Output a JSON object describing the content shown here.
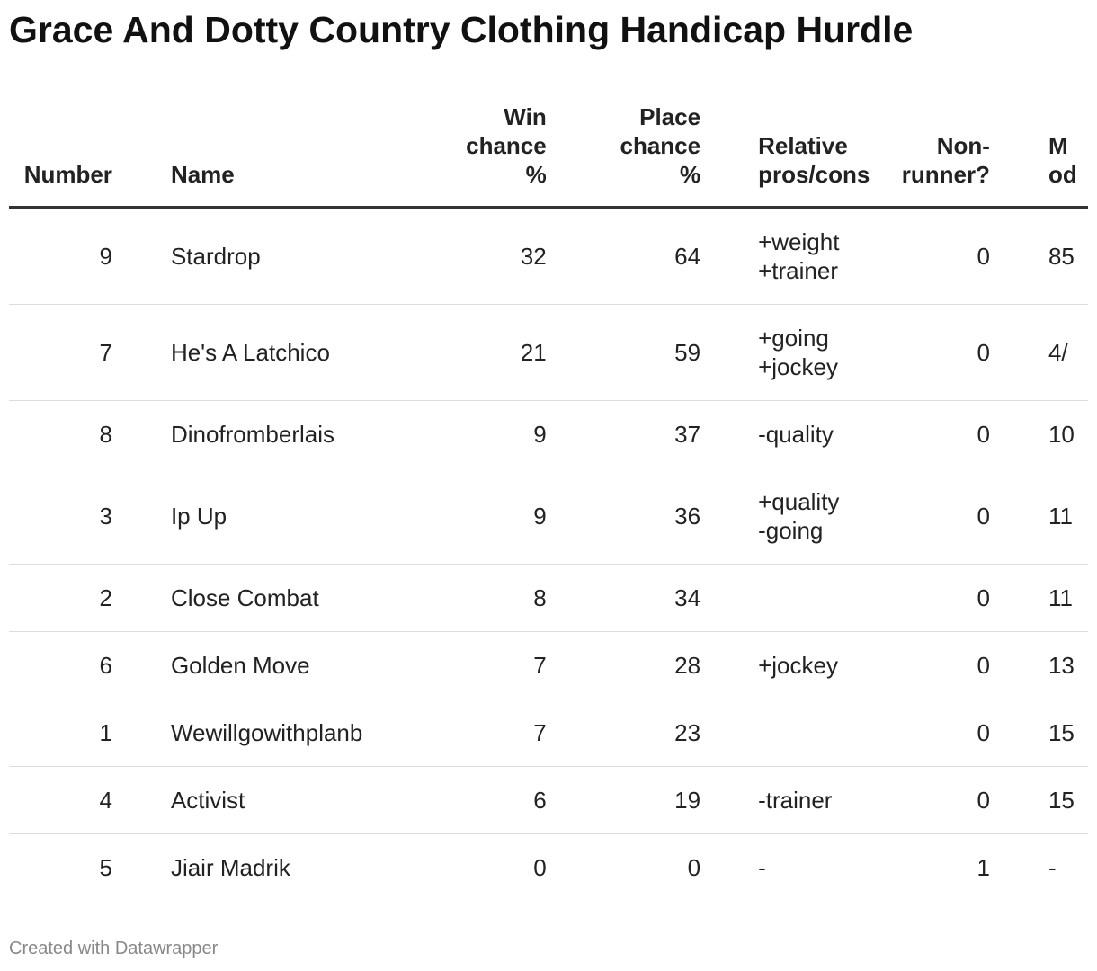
{
  "header": {
    "title": "Grace And Dotty Country Clothing Handicap Hurdle"
  },
  "table": {
    "columns": [
      "Number",
      "Name",
      "Win\nchance\n%",
      "Place\nchance\n%",
      "Relative\npros/cons",
      "Non-\nrunner?",
      "M\nod"
    ],
    "rows": [
      [
        9,
        "Stardrop",
        32,
        64,
        "+weight\n+trainer",
        0,
        "85"
      ],
      [
        7,
        "He's A Latchico",
        21,
        59,
        "+going\n+jockey",
        0,
        "4/"
      ],
      [
        8,
        "Dinofromberlais",
        9,
        37,
        "-quality",
        0,
        "10"
      ],
      [
        3,
        "Ip Up",
        9,
        36,
        "+quality\n-going",
        0,
        "11"
      ],
      [
        2,
        "Close Combat",
        8,
        34,
        "",
        0,
        "11"
      ],
      [
        6,
        "Golden Move",
        7,
        28,
        "+jockey",
        0,
        "13"
      ],
      [
        1,
        "Wewillgowithplanb",
        7,
        23,
        "",
        0,
        "15"
      ],
      [
        4,
        "Activist",
        6,
        19,
        "-trainer",
        0,
        "15"
      ],
      [
        5,
        "Jiair Madrik",
        0,
        0,
        "-",
        1,
        "-"
      ]
    ]
  },
  "footer": {
    "credit": "Created with Datawrapper"
  }
}
